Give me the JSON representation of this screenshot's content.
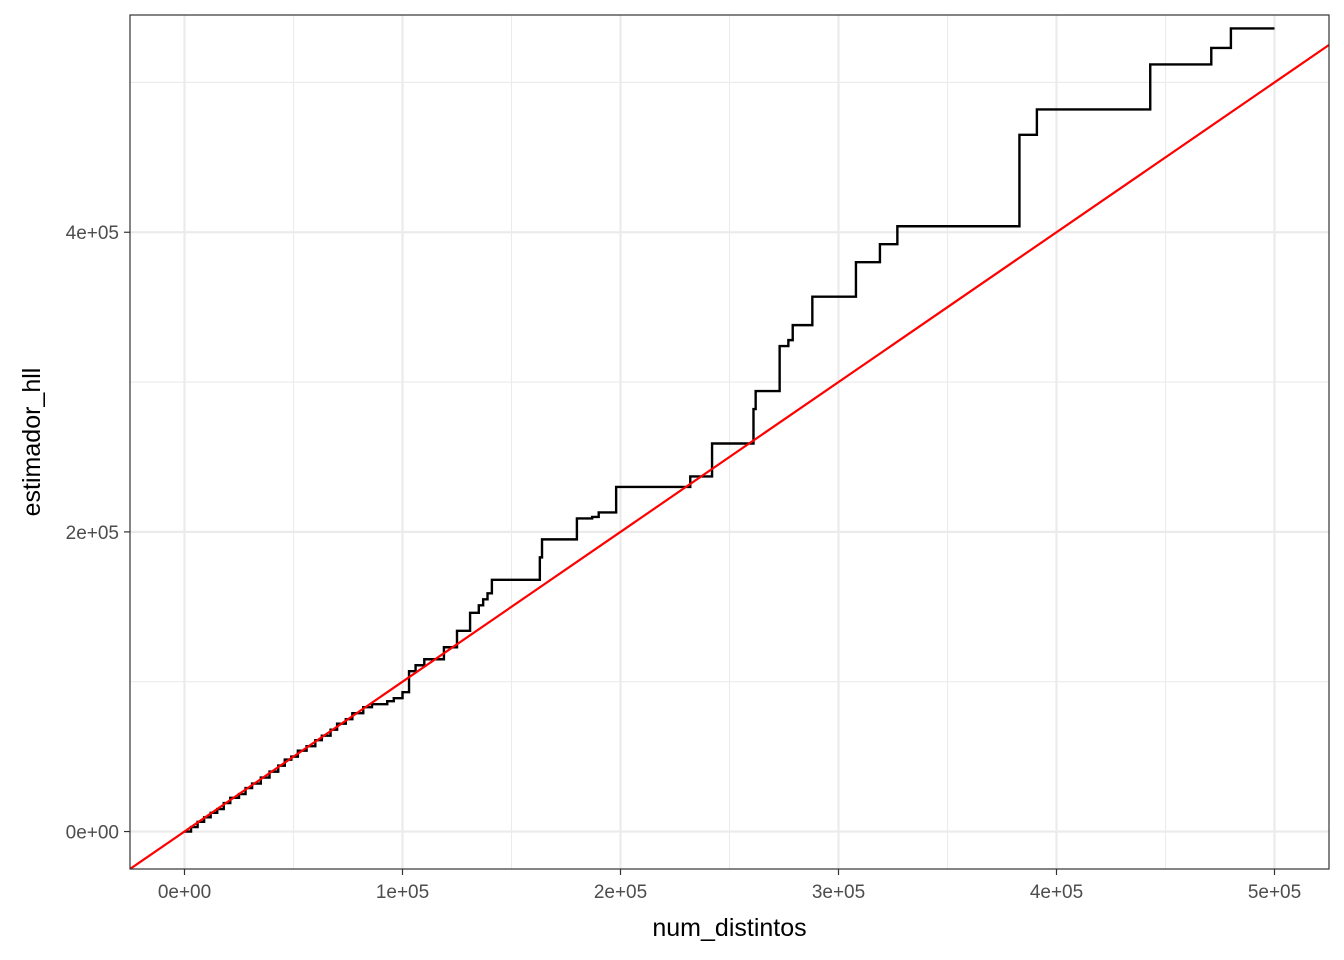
{
  "chart_data": {
    "type": "line",
    "title": "",
    "xlabel": "num_distintos",
    "ylabel": "estimador_hll",
    "xlim": [
      -25000,
      525000
    ],
    "ylim": [
      -25000,
      545000
    ],
    "x_ticks": [
      0,
      100000,
      200000,
      300000,
      400000,
      500000
    ],
    "x_tick_labels": [
      "0e+00",
      "1e+05",
      "2e+05",
      "3e+05",
      "4e+05",
      "5e+05"
    ],
    "y_ticks": [
      0,
      200000,
      400000
    ],
    "y_tick_labels": [
      "0e+00",
      "2e+05",
      "4e+05"
    ],
    "grid": true,
    "series": [
      {
        "kind": "step",
        "color": "#000000",
        "points": [
          [
            0,
            0
          ],
          [
            3000,
            3000
          ],
          [
            6000,
            6500
          ],
          [
            9000,
            9500
          ],
          [
            12000,
            12500
          ],
          [
            15000,
            15000
          ],
          [
            18000,
            19000
          ],
          [
            21000,
            22500
          ],
          [
            25000,
            25000
          ],
          [
            28000,
            29000
          ],
          [
            31000,
            32000
          ],
          [
            35000,
            36000
          ],
          [
            39000,
            40000
          ],
          [
            43000,
            44000
          ],
          [
            46000,
            48000
          ],
          [
            49000,
            50000
          ],
          [
            52000,
            54000
          ],
          [
            56000,
            57000
          ],
          [
            60000,
            61000
          ],
          [
            63000,
            64000
          ],
          [
            67000,
            68000
          ],
          [
            70000,
            72000
          ],
          [
            74000,
            75000
          ],
          [
            77000,
            79000
          ],
          [
            82000,
            83000
          ],
          [
            86000,
            85000
          ],
          [
            93000,
            87000
          ],
          [
            96000,
            89000
          ],
          [
            100000,
            93000
          ],
          [
            103000,
            107000
          ],
          [
            106000,
            111000
          ],
          [
            110000,
            115000
          ],
          [
            119000,
            123000
          ],
          [
            125000,
            134000
          ],
          [
            131000,
            146000
          ],
          [
            135000,
            151000
          ],
          [
            137000,
            155000
          ],
          [
            139000,
            159000
          ],
          [
            141000,
            168000
          ],
          [
            163000,
            183000
          ],
          [
            164000,
            195000
          ],
          [
            180000,
            209000
          ],
          [
            187000,
            210000
          ],
          [
            190000,
            213000
          ],
          [
            198000,
            230000
          ],
          [
            232000,
            237000
          ],
          [
            242000,
            259000
          ],
          [
            261000,
            282000
          ],
          [
            262000,
            294000
          ],
          [
            273000,
            324000
          ],
          [
            277000,
            328000
          ],
          [
            279000,
            338000
          ],
          [
            288000,
            357000
          ],
          [
            308000,
            380000
          ],
          [
            319000,
            392000
          ],
          [
            327000,
            404000
          ],
          [
            383000,
            465000
          ],
          [
            391000,
            482000
          ],
          [
            443000,
            512000
          ],
          [
            471000,
            523000
          ],
          [
            480000,
            536000
          ],
          [
            500000,
            536000
          ]
        ]
      },
      {
        "kind": "reference-line",
        "color": "#ff0000",
        "intercept": 0,
        "slope": 1
      }
    ]
  }
}
